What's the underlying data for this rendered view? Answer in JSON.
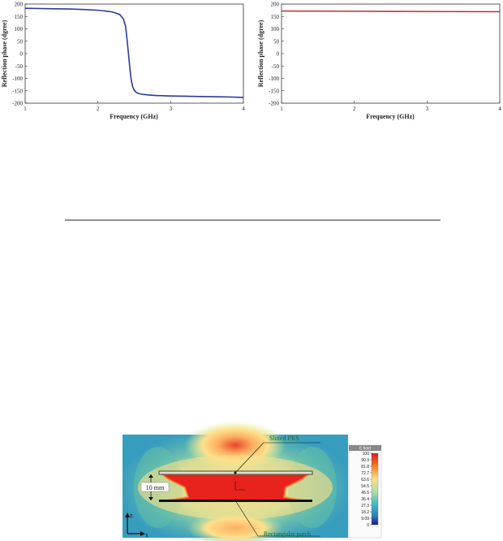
{
  "chart_data": [
    {
      "type": "line",
      "xlabel": "Frequency (GHz)",
      "ylabel": "Reflection phase (dgree)",
      "xlim": [
        1,
        4
      ],
      "ylim": [
        -200,
        200
      ],
      "xticks": [
        "1",
        "2",
        "3",
        "4"
      ],
      "yticks": [
        "200",
        "150",
        "100",
        "50",
        "0",
        "-50",
        "-100",
        "-150",
        "-200"
      ],
      "grid": false,
      "series": [
        {
          "color": "#2b3a9c",
          "x": [
            1.0,
            1.2,
            1.4,
            1.6,
            1.8,
            2.0,
            2.1,
            2.2,
            2.3,
            2.35,
            2.38,
            2.4,
            2.42,
            2.44,
            2.46,
            2.48,
            2.5,
            2.52,
            2.55,
            2.6,
            2.7,
            2.8,
            3.0,
            3.2,
            3.4,
            3.6,
            3.8,
            4.0
          ],
          "y": [
            183,
            182,
            181,
            180,
            178,
            175,
            172,
            168,
            158,
            140,
            110,
            60,
            0,
            -60,
            -110,
            -135,
            -148,
            -155,
            -160,
            -164,
            -167,
            -169,
            -171,
            -172,
            -173,
            -174,
            -175,
            -177
          ]
        }
      ]
    },
    {
      "type": "line",
      "xlabel": "Frequency (GHz)",
      "ylabel": "Reflection phase (dgree)",
      "xlim": [
        1,
        4
      ],
      "ylim": [
        -200,
        200
      ],
      "xticks": [
        "1",
        "2",
        "3",
        "4"
      ],
      "yticks": [
        "200",
        "150",
        "100",
        "50",
        "0",
        "-50",
        "-100",
        "-150",
        "-200"
      ],
      "grid": false,
      "series": [
        {
          "color": "#b22222",
          "x": [
            1.0,
            1.5,
            2.0,
            2.5,
            3.0,
            3.5,
            4.0
          ],
          "y": [
            172,
            171.5,
            171,
            170.5,
            170,
            169.5,
            169
          ]
        }
      ]
    }
  ],
  "field_image": {
    "labels": {
      "top": "Sloted PRS",
      "bottom": "Rectangular patch",
      "gap": "10 mm",
      "axis_z": "z",
      "axis_x": "x"
    },
    "colorbar": {
      "title": "E field",
      "ticks": [
        "100",
        "90.9",
        "81.8",
        "72.7",
        "63.6",
        "54.5",
        "45.5",
        "36.4",
        "27.3",
        "18.2",
        "9.09",
        "0"
      ],
      "colors": [
        "#d7191c",
        "#e8452a",
        "#f47f26",
        "#fdae61",
        "#fee08b",
        "#e6f598",
        "#abdda4",
        "#66c2a5",
        "#41b6c4",
        "#2c7fb8",
        "#253494",
        "#1a1a8c"
      ]
    }
  }
}
